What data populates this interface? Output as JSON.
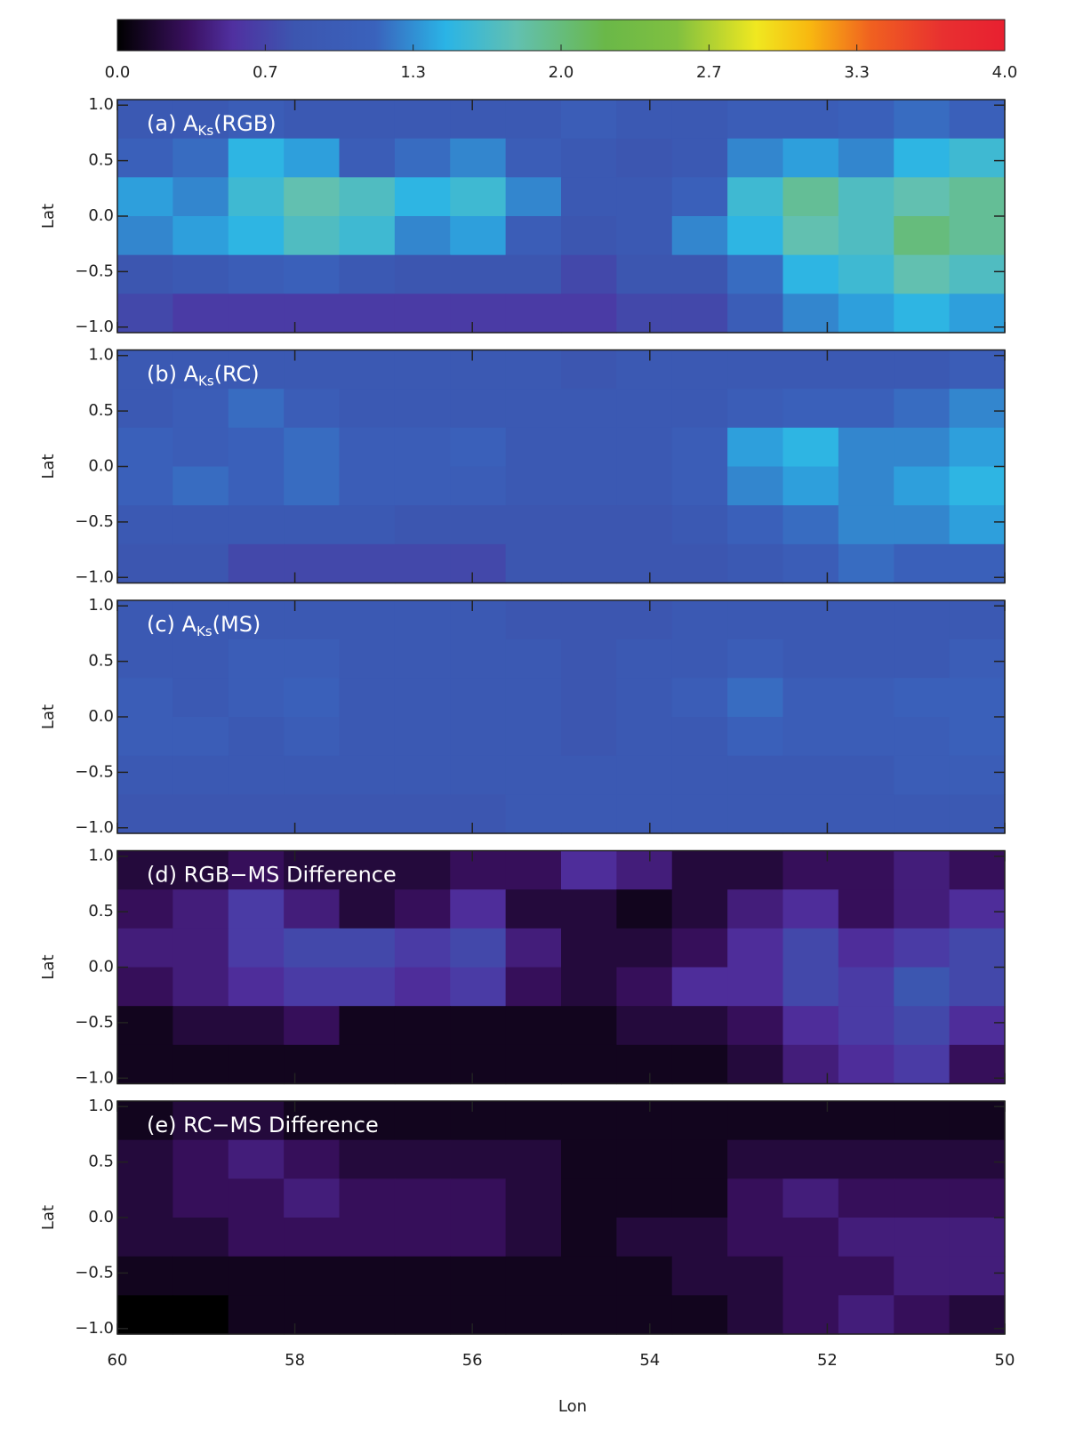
{
  "chart_data": {
    "type": "heatmap",
    "x_label": "Lon",
    "xlim": [
      60,
      50
    ],
    "xticks": [
      60,
      58,
      56,
      54,
      52,
      50
    ],
    "colorbar": {
      "clim": [
        0,
        4
      ],
      "ticks": [
        {
          "value": 0,
          "label": "0.0"
        },
        {
          "value": 0.6667,
          "label": "0.7"
        },
        {
          "value": 1.3333,
          "label": "1.3"
        },
        {
          "value": 2,
          "label": "2.0"
        },
        {
          "value": 2.6667,
          "label": "2.7"
        },
        {
          "value": 3.3333,
          "label": "3.3"
        },
        {
          "value": 4,
          "label": "4.0"
        }
      ],
      "colormap": [
        [
          "#000000",
          0
        ],
        [
          "#3a1060",
          0.08
        ],
        [
          "#5030a0",
          0.13
        ],
        [
          "#3c56b0",
          0.2
        ],
        [
          "#3a62bc",
          0.29
        ],
        [
          "#2ab4e6",
          0.37
        ],
        [
          "#62c0b0",
          0.45
        ],
        [
          "#6ab848",
          0.55
        ],
        [
          "#80c040",
          0.63
        ],
        [
          "#f0e820",
          0.72
        ],
        [
          "#f8b810",
          0.78
        ],
        [
          "#f06020",
          0.85
        ],
        [
          "#e83030",
          0.93
        ],
        [
          "#e82030",
          1
        ]
      ]
    },
    "panels": [
      {
        "title": {
          "prefix": "(a) A",
          "subscript": "Ks",
          "suffix": "(RGB)"
        },
        "y_label": "Lat",
        "ylim": [
          -1.05,
          1.05
        ],
        "yticks": [
          {
            "value": -1,
            "label": "−1.0"
          },
          {
            "value": -0.5,
            "label": "−0.5"
          },
          {
            "value": 0,
            "label": "0.0"
          },
          {
            "value": 0.5,
            "label": "0.5"
          },
          {
            "value": 1,
            "label": "1.0"
          }
        ],
        "z": [
          [
            0.9,
            0.9,
            1.0,
            0.9,
            0.9,
            0.9,
            0.9,
            0.9,
            1.0,
            0.9,
            0.9,
            1.0,
            1.0,
            1.1,
            1.2,
            1.1
          ],
          [
            1.1,
            1.2,
            1.5,
            1.4,
            1.0,
            1.2,
            1.3,
            1.0,
            0.9,
            0.8,
            0.9,
            1.3,
            1.4,
            1.3,
            1.5,
            1.6
          ],
          [
            1.4,
            1.3,
            1.6,
            1.8,
            1.7,
            1.5,
            1.6,
            1.3,
            0.9,
            0.9,
            1.1,
            1.6,
            1.9,
            1.7,
            1.8,
            1.9
          ],
          [
            1.3,
            1.4,
            1.5,
            1.7,
            1.6,
            1.3,
            1.4,
            1.0,
            0.8,
            0.9,
            1.3,
            1.5,
            1.8,
            1.7,
            2.0,
            1.9
          ],
          [
            0.8,
            0.9,
            1.0,
            1.1,
            0.9,
            0.8,
            0.8,
            0.8,
            0.7,
            0.8,
            0.8,
            1.2,
            1.5,
            1.6,
            1.8,
            1.7
          ],
          [
            0.7,
            0.6,
            0.6,
            0.6,
            0.6,
            0.6,
            0.6,
            0.6,
            0.6,
            0.7,
            0.7,
            1.0,
            1.3,
            1.4,
            1.5,
            1.4
          ]
        ]
      },
      {
        "title": {
          "prefix": "(b) A",
          "subscript": "Ks",
          "suffix": "(RC)"
        },
        "y_label": "Lat",
        "ylim": [
          -1.05,
          1.05
        ],
        "yticks": [
          {
            "value": -1,
            "label": "−1.0"
          },
          {
            "value": -0.5,
            "label": "−0.5"
          },
          {
            "value": 0,
            "label": "0.0"
          },
          {
            "value": 0.5,
            "label": "0.5"
          },
          {
            "value": 1,
            "label": "1.0"
          }
        ],
        "z": [
          [
            0.9,
            0.9,
            0.9,
            0.9,
            0.9,
            0.9,
            0.9,
            0.9,
            0.8,
            0.9,
            0.9,
            0.9,
            0.9,
            0.9,
            0.9,
            1.0
          ],
          [
            0.9,
            1.0,
            1.2,
            1.0,
            0.9,
            0.9,
            0.9,
            0.9,
            0.9,
            0.9,
            0.9,
            1.0,
            1.1,
            1.1,
            1.2,
            1.3
          ],
          [
            1.1,
            1.0,
            1.1,
            1.2,
            1.0,
            1.0,
            1.1,
            0.9,
            0.9,
            0.9,
            1.0,
            1.4,
            1.5,
            1.3,
            1.3,
            1.4
          ],
          [
            1.1,
            1.2,
            1.1,
            1.2,
            1.0,
            1.0,
            1.0,
            0.9,
            0.9,
            0.9,
            1.0,
            1.3,
            1.4,
            1.3,
            1.4,
            1.5
          ],
          [
            0.9,
            0.9,
            0.9,
            0.9,
            0.9,
            0.8,
            0.8,
            0.8,
            0.8,
            0.8,
            0.9,
            1.1,
            1.2,
            1.3,
            1.3,
            1.4
          ],
          [
            0.8,
            0.8,
            0.7,
            0.7,
            0.7,
            0.7,
            0.7,
            0.8,
            0.8,
            0.8,
            0.8,
            0.9,
            1.0,
            1.2,
            1.1,
            1.1
          ]
        ]
      },
      {
        "title": {
          "prefix": "(c) A",
          "subscript": "Ks",
          "suffix": "(MS)"
        },
        "y_label": "Lat",
        "ylim": [
          -1.05,
          1.05
        ],
        "yticks": [
          {
            "value": -1,
            "label": "−1.0"
          },
          {
            "value": -0.5,
            "label": "−0.5"
          },
          {
            "value": 0,
            "label": "0.0"
          },
          {
            "value": 0.5,
            "label": "0.5"
          },
          {
            "value": 1,
            "label": "1.0"
          }
        ],
        "z": [
          [
            0.9,
            0.9,
            0.9,
            0.9,
            0.9,
            0.9,
            0.9,
            0.8,
            0.8,
            0.8,
            0.9,
            0.9,
            0.9,
            0.9,
            0.9,
            0.9
          ],
          [
            0.9,
            0.9,
            1.0,
            1.0,
            0.9,
            0.9,
            0.9,
            0.9,
            0.8,
            0.9,
            0.9,
            1.0,
            0.9,
            0.9,
            0.9,
            1.0
          ],
          [
            1.0,
            0.9,
            1.0,
            1.1,
            0.9,
            0.9,
            0.9,
            0.9,
            0.8,
            0.9,
            1.0,
            1.2,
            1.0,
            1.0,
            1.1,
            1.1
          ],
          [
            1.0,
            1.0,
            0.9,
            1.0,
            0.9,
            0.9,
            0.9,
            0.9,
            0.8,
            0.9,
            0.9,
            1.1,
            1.0,
            1.0,
            1.0,
            1.1
          ],
          [
            0.9,
            0.9,
            0.9,
            0.9,
            0.9,
            0.9,
            0.9,
            0.9,
            0.9,
            0.9,
            0.9,
            0.9,
            0.9,
            0.9,
            1.0,
            1.0
          ],
          [
            0.8,
            0.8,
            0.8,
            0.8,
            0.8,
            0.8,
            0.8,
            0.9,
            0.9,
            0.9,
            0.9,
            0.9,
            0.9,
            0.9,
            0.9,
            0.9
          ]
        ]
      },
      {
        "title": {
          "prefix": "(d) RGB−MS Difference"
        },
        "y_label": "Lat",
        "ylim": [
          -1.05,
          1.05
        ],
        "yticks": [
          {
            "value": -1,
            "label": "−1.0"
          },
          {
            "value": -0.5,
            "label": "−0.5"
          },
          {
            "value": 0,
            "label": "0.0"
          },
          {
            "value": 0.5,
            "label": "0.5"
          },
          {
            "value": 1,
            "label": "1.0"
          }
        ],
        "z": [
          [
            0.2,
            0.2,
            0.3,
            0.2,
            0.2,
            0.2,
            0.3,
            0.3,
            0.5,
            0.4,
            0.2,
            0.2,
            0.3,
            0.3,
            0.4,
            0.3
          ],
          [
            0.3,
            0.4,
            0.6,
            0.4,
            0.2,
            0.3,
            0.5,
            0.2,
            0.2,
            0.1,
            0.2,
            0.4,
            0.5,
            0.3,
            0.4,
            0.5
          ],
          [
            0.4,
            0.4,
            0.6,
            0.7,
            0.7,
            0.6,
            0.7,
            0.4,
            0.2,
            0.2,
            0.3,
            0.5,
            0.7,
            0.5,
            0.6,
            0.7
          ],
          [
            0.3,
            0.4,
            0.5,
            0.6,
            0.6,
            0.5,
            0.6,
            0.3,
            0.2,
            0.3,
            0.5,
            0.5,
            0.7,
            0.6,
            0.8,
            0.7
          ],
          [
            0.1,
            0.2,
            0.2,
            0.3,
            0.1,
            0.1,
            0.1,
            0.1,
            0.1,
            0.2,
            0.2,
            0.3,
            0.5,
            0.6,
            0.7,
            0.5
          ],
          [
            0.1,
            0.1,
            0.1,
            0.1,
            0.1,
            0.1,
            0.1,
            0.1,
            0.1,
            0.1,
            0.1,
            0.2,
            0.4,
            0.5,
            0.6,
            0.3
          ]
        ]
      },
      {
        "title": {
          "prefix": "(e) RC−MS Difference"
        },
        "y_label": "Lat",
        "ylim": [
          -1.05,
          1.05
        ],
        "yticks": [
          {
            "value": -1,
            "label": "−1.0"
          },
          {
            "value": -0.5,
            "label": "−0.5"
          },
          {
            "value": 0,
            "label": "0.0"
          },
          {
            "value": 0.5,
            "label": "0.5"
          },
          {
            "value": 1,
            "label": "1.0"
          }
        ],
        "z": [
          [
            0.1,
            0.2,
            0.2,
            0.1,
            0.1,
            0.1,
            0.1,
            0.1,
            0.1,
            0.1,
            0.1,
            0.1,
            0.1,
            0.1,
            0.1,
            0.1
          ],
          [
            0.2,
            0.3,
            0.4,
            0.3,
            0.2,
            0.2,
            0.2,
            0.2,
            0.1,
            0.1,
            0.1,
            0.2,
            0.2,
            0.2,
            0.2,
            0.2
          ],
          [
            0.2,
            0.3,
            0.3,
            0.4,
            0.3,
            0.3,
            0.3,
            0.2,
            0.1,
            0.1,
            0.1,
            0.3,
            0.4,
            0.3,
            0.3,
            0.3
          ],
          [
            0.2,
            0.2,
            0.3,
            0.3,
            0.3,
            0.3,
            0.3,
            0.2,
            0.1,
            0.2,
            0.2,
            0.3,
            0.3,
            0.4,
            0.4,
            0.4
          ],
          [
            0.1,
            0.1,
            0.1,
            0.1,
            0.1,
            0.1,
            0.1,
            0.1,
            0.1,
            0.1,
            0.2,
            0.2,
            0.3,
            0.3,
            0.4,
            0.4
          ],
          [
            0.0,
            0.0,
            0.1,
            0.1,
            0.1,
            0.1,
            0.1,
            0.1,
            0.1,
            0.1,
            0.1,
            0.2,
            0.3,
            0.4,
            0.3,
            0.2
          ]
        ]
      }
    ]
  }
}
